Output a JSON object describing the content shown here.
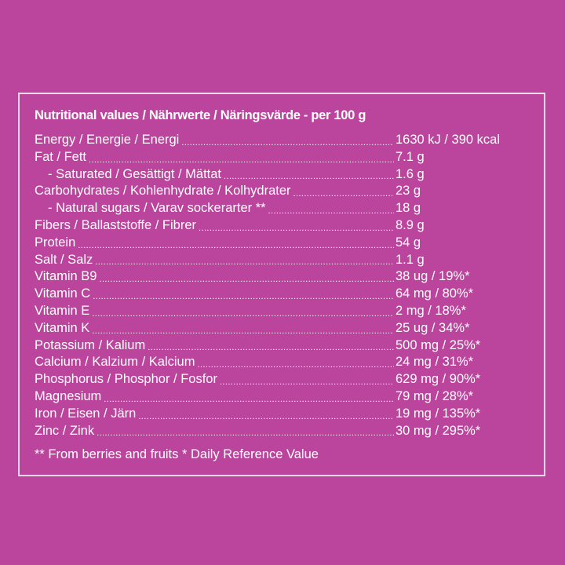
{
  "title": "Nutritional values / Nährwerte / Näringsvärde - per 100 g",
  "rows": [
    {
      "label": "Energy / Energie / Energi",
      "value": "1630 kJ / 390 kcal",
      "indent": false
    },
    {
      "label": "Fat / Fett",
      "value": "7.1 g",
      "indent": false
    },
    {
      "label": "- Saturated / Gesättigt / Mättat",
      "value": "1.6 g",
      "indent": true
    },
    {
      "label": "Carbohydrates / Kohlenhydrate / Kolhydrater",
      "value": "23 g",
      "indent": false
    },
    {
      "label": "- Natural sugars / Varav sockerarter **",
      "value": "18 g",
      "indent": true
    },
    {
      "label": "Fibers / Ballaststoffe / Fibrer",
      "value": "8.9 g",
      "indent": false
    },
    {
      "label": "Protein",
      "value": "54 g",
      "indent": false
    },
    {
      "label": "Salt / Salz",
      "value": "1.1 g",
      "indent": false
    },
    {
      "label": "Vitamin B9",
      "value": "38 ug / 19%*",
      "indent": false
    },
    {
      "label": "Vitamin C",
      "value": "64 mg / 80%*",
      "indent": false
    },
    {
      "label": "Vitamin E",
      "value": "2 mg / 18%*",
      "indent": false
    },
    {
      "label": "Vitamin K",
      "value": "25 ug / 34%*",
      "indent": false
    },
    {
      "label": "Potassium / Kalium",
      "value": "500 mg / 25%*",
      "indent": false
    },
    {
      "label": "Calcium / Kalzium / Kalcium",
      "value": "24 mg / 31%*",
      "indent": false
    },
    {
      "label": "Phosphorus / Phosphor / Fosfor",
      "value": "629 mg / 90%*",
      "indent": false
    },
    {
      "label": "Magnesium",
      "value": "79 mg / 28%*",
      "indent": false
    },
    {
      "label": "Iron / Eisen / Järn",
      "value": "19 mg / 135%*",
      "indent": false
    },
    {
      "label": "Zinc / Zink",
      "value": "30 mg / 295%*",
      "indent": false
    }
  ],
  "footnote": "** From berries and fruits * Daily Reference Value",
  "colors": {
    "background": "#bb459d",
    "text": "#ffffff",
    "border": "#f1dbe9"
  }
}
